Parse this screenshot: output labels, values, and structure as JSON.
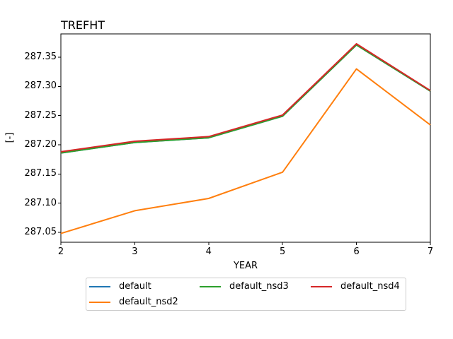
{
  "chart_data": {
    "type": "line",
    "title": "TREFHT",
    "xlabel": "YEAR",
    "ylabel": "[-]",
    "grid": false,
    "x": [
      2,
      3,
      4,
      5,
      6,
      7
    ],
    "xlim": [
      2,
      7
    ],
    "ylim": [
      287.033,
      287.39
    ],
    "xticks": [
      2,
      3,
      4,
      5,
      6,
      7
    ],
    "xtick_labels": [
      "2",
      "3",
      "4",
      "5",
      "6",
      "7"
    ],
    "yticks": [
      287.05,
      287.1,
      287.15,
      287.2,
      287.25,
      287.3,
      287.35
    ],
    "ytick_labels": [
      "287.05",
      "287.10",
      "287.15",
      "287.20",
      "287.25",
      "287.30",
      "287.35"
    ],
    "series": [
      {
        "name": "default",
        "color": "#1f77b4",
        "values": [
          287.186,
          287.204,
          287.212,
          287.249,
          287.371,
          287.292
        ]
      },
      {
        "name": "default_nsd2",
        "color": "#ff7f0e",
        "values": [
          287.048,
          287.087,
          287.108,
          287.153,
          287.33,
          287.234
        ]
      },
      {
        "name": "default_nsd3",
        "color": "#2ca02c",
        "values": [
          287.186,
          287.204,
          287.212,
          287.249,
          287.371,
          287.292
        ]
      },
      {
        "name": "default_nsd4",
        "color": "#d62728",
        "values": [
          287.188,
          287.206,
          287.214,
          287.251,
          287.373,
          287.293
        ]
      }
    ],
    "legend": {
      "position": "below",
      "ncol": 3,
      "entries": [
        "default",
        "default_nsd2",
        "default_nsd3",
        "default_nsd4"
      ]
    },
    "axis_color": "#000000",
    "background_color": "#ffffff"
  }
}
